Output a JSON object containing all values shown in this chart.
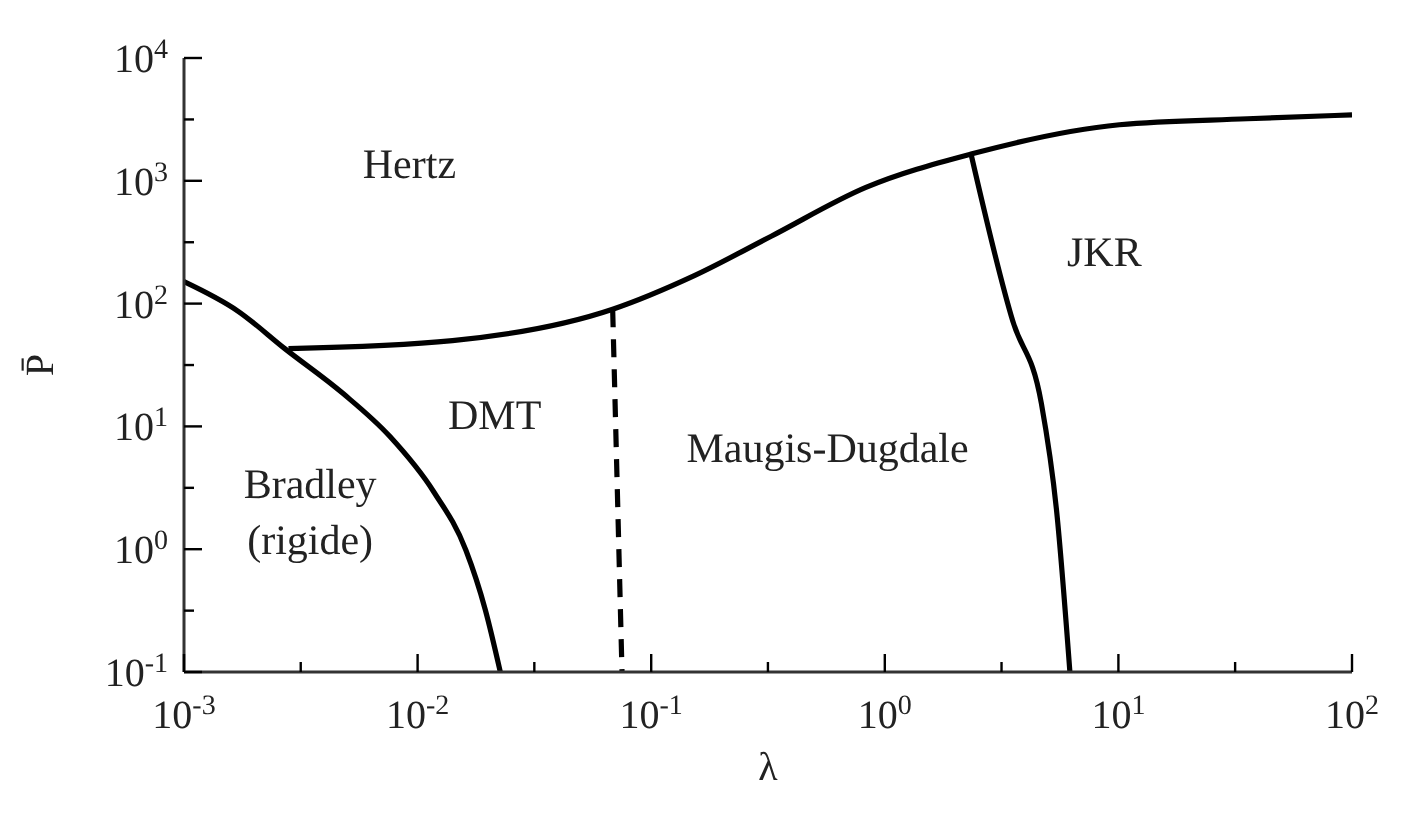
{
  "chart_data": {
    "type": "line",
    "xlabel": "λ",
    "ylabel": "P̄",
    "log": "xy",
    "marker": "none",
    "line_style": "solid",
    "xlim": [
      0.001,
      100
    ],
    "ylim": [
      0.1,
      10000
    ],
    "xticks": [
      {
        "value": 0.001,
        "label": "10$^{-3}$"
      },
      {
        "value": 0.00316,
        "label": null
      },
      {
        "value": 0.01,
        "label": "10$^{-2}$"
      },
      {
        "value": 0.0316,
        "label": null
      },
      {
        "value": 0.1,
        "label": "10$^{-1}$"
      },
      {
        "value": 0.316,
        "label": null
      },
      {
        "value": 1,
        "label": "10$^{0}$"
      },
      {
        "value": 3.16,
        "label": null
      },
      {
        "value": 10,
        "label": "10$^{1}$"
      },
      {
        "value": 31.6,
        "label": null
      },
      {
        "value": 100,
        "label": "10$^{2}$"
      }
    ],
    "yticks": [
      {
        "value": 0.1,
        "label": "10$^{-1}$"
      },
      {
        "value": 0.316,
        "label": null
      },
      {
        "value": 1,
        "label": "10$^{0}$"
      },
      {
        "value": 3.16,
        "label": null
      },
      {
        "value": 10,
        "label": "10$^{1}$"
      },
      {
        "value": 31.6,
        "label": null
      },
      {
        "value": 100,
        "label": "10$^{2}$"
      },
      {
        "value": 316,
        "label": null
      },
      {
        "value": 1000,
        "label": "10$^{3}$"
      },
      {
        "value": 3160,
        "label": null
      },
      {
        "value": 10000,
        "label": "10$^{4}$"
      }
    ],
    "series": [
      {
        "color": "#000000",
        "x": [
          0.001,
          0.0017,
          0.0027,
          0.0048,
          0.0076,
          0.0117,
          0.0161,
          0.0195,
          0.0226
        ],
        "values": [
          151,
          87,
          43,
          18.5,
          8.3,
          2.95,
          0.98,
          0.32,
          0.1
        ]
      },
      {
        "color": "#000000",
        "x": [
          0.0028,
          0.0141,
          0.0684,
          0.153,
          0.325,
          0.83,
          2.34,
          10.1,
          35.6,
          100
        ],
        "values": [
          43,
          50,
          90,
          169,
          352,
          883,
          1650,
          2860,
          3200,
          3440
        ]
      },
      {
        "color": "#000000",
        "line_style": "dashed",
        "x": [
          0.0684,
          0.075
        ],
        "values": [
          90,
          0.1
        ]
      },
      {
        "color": "#000000",
        "x": [
          2.34,
          3.53,
          4.68,
          5.44,
          6.2
        ],
        "values": [
          1650,
          72,
          15.4,
          2.04,
          0.1
        ]
      }
    ],
    "annotations": [
      "Hertz",
      "DMT",
      "Bradley",
      "(rigide)",
      "Maugis-Dugdale",
      "JKR"
    ]
  }
}
